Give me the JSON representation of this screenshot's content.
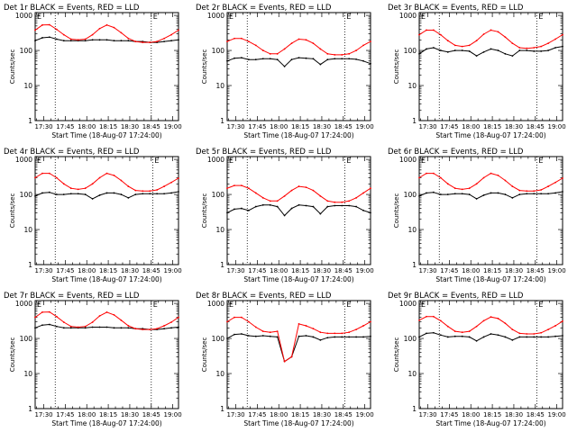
{
  "common": {
    "xlabel": "Start Time (18-Aug-07 17:24:00)",
    "ylabel": "Counts/sec",
    "y_ticks": [
      {
        "value": 1,
        "label": "1"
      },
      {
        "value": 10,
        "label": "10"
      },
      {
        "value": 100,
        "label": "100"
      },
      {
        "value": 1000,
        "label": "1000"
      }
    ],
    "x_ticks": [
      "17:30",
      "17:45",
      "18:00",
      "18:15",
      "18:30",
      "18:45",
      "19:00"
    ],
    "marker_text": "E",
    "colors": {
      "events": "#000000",
      "lld": "#ff0000",
      "axis": "#000000"
    }
  },
  "chart_data": [
    {
      "type": "line",
      "title": "Det 1r BLACK = Events, RED = LLD",
      "xlabel": "Start Time (18-Aug-07 17:24:00)",
      "ylabel": "Counts/sec",
      "y_scale": "log",
      "ylim": [
        1,
        1200
      ],
      "xlim": [
        "17:24",
        "19:04"
      ],
      "vlines": [
        "17:38",
        "18:45"
      ],
      "x": [
        "17:24",
        "17:29",
        "17:34",
        "17:39",
        "17:44",
        "17:49",
        "17:54",
        "17:59",
        "18:04",
        "18:09",
        "18:14",
        "18:19",
        "18:24",
        "18:29",
        "18:34",
        "18:39",
        "18:44",
        "18:49",
        "18:54",
        "18:59",
        "19:04"
      ],
      "series": [
        {
          "key": "events",
          "values": [
            190,
            230,
            240,
            210,
            190,
            190,
            190,
            190,
            200,
            200,
            200,
            190,
            190,
            190,
            180,
            180,
            170,
            170,
            180,
            190,
            200
          ]
        },
        {
          "key": "lld",
          "values": [
            380,
            530,
            540,
            400,
            280,
            210,
            200,
            210,
            280,
            420,
            530,
            450,
            320,
            220,
            180,
            170,
            170,
            180,
            220,
            280,
            380
          ]
        }
      ]
    },
    {
      "type": "line",
      "title": "Det 2r BLACK = Events, RED = LLD",
      "xlabel": "Start Time (18-Aug-07 17:24:00)",
      "ylabel": "Counts/sec",
      "y_scale": "log",
      "ylim": [
        1,
        1200
      ],
      "xlim": [
        "17:24",
        "19:04"
      ],
      "vlines": [
        "17:38",
        "18:46"
      ],
      "x": [
        "17:24",
        "17:29",
        "17:34",
        "17:39",
        "17:44",
        "17:49",
        "17:54",
        "17:59",
        "18:04",
        "18:09",
        "18:14",
        "18:19",
        "18:24",
        "18:29",
        "18:34",
        "18:39",
        "18:44",
        "18:49",
        "18:54",
        "18:59",
        "19:04"
      ],
      "series": [
        {
          "key": "events",
          "values": [
            50,
            60,
            62,
            55,
            55,
            58,
            58,
            55,
            35,
            55,
            62,
            60,
            58,
            40,
            55,
            58,
            58,
            58,
            56,
            50,
            42
          ]
        },
        {
          "key": "lld",
          "values": [
            180,
            220,
            220,
            180,
            140,
            100,
            80,
            80,
            110,
            160,
            210,
            200,
            160,
            110,
            80,
            75,
            75,
            80,
            100,
            140,
            180
          ]
        }
      ]
    },
    {
      "type": "line",
      "title": "Det 3r BLACK = Events, RED = LLD",
      "xlabel": "Start Time (18-Aug-07 17:24:00)",
      "ylabel": "Counts/sec",
      "y_scale": "log",
      "ylim": [
        1,
        1200
      ],
      "xlim": [
        "17:24",
        "19:04"
      ],
      "vlines": [
        "17:38",
        "18:46"
      ],
      "x": [
        "17:24",
        "17:29",
        "17:34",
        "17:39",
        "17:44",
        "17:49",
        "17:54",
        "17:59",
        "18:04",
        "18:09",
        "18:14",
        "18:19",
        "18:24",
        "18:29",
        "18:34",
        "18:39",
        "18:44",
        "18:49",
        "18:54",
        "18:59",
        "19:04"
      ],
      "series": [
        {
          "key": "events",
          "values": [
            80,
            110,
            120,
            100,
            90,
            100,
            100,
            95,
            70,
            90,
            110,
            100,
            80,
            70,
            100,
            100,
            95,
            95,
            100,
            120,
            130
          ]
        },
        {
          "key": "lld",
          "values": [
            280,
            380,
            380,
            280,
            190,
            140,
            130,
            140,
            190,
            290,
            380,
            340,
            240,
            160,
            120,
            115,
            120,
            130,
            160,
            210,
            280
          ]
        }
      ]
    },
    {
      "type": "line",
      "title": "Det 4r BLACK = Events, RED = LLD",
      "xlabel": "Start Time (18-Aug-07 17:24:00)",
      "ylabel": "Counts/sec",
      "y_scale": "log",
      "ylim": [
        1,
        1200
      ],
      "xlim": [
        "17:24",
        "19:04"
      ],
      "vlines": [
        "17:38",
        "18:46"
      ],
      "x": [
        "17:24",
        "17:29",
        "17:34",
        "17:39",
        "17:44",
        "17:49",
        "17:54",
        "17:59",
        "18:04",
        "18:09",
        "18:14",
        "18:19",
        "18:24",
        "18:29",
        "18:34",
        "18:39",
        "18:44",
        "18:49",
        "18:54",
        "18:59",
        "19:04"
      ],
      "series": [
        {
          "key": "events",
          "values": [
            90,
            110,
            115,
            100,
            100,
            105,
            105,
            100,
            75,
            95,
            110,
            110,
            100,
            80,
            100,
            105,
            105,
            105,
            105,
            110,
            120
          ]
        },
        {
          "key": "lld",
          "values": [
            300,
            400,
            400,
            300,
            200,
            150,
            140,
            150,
            200,
            300,
            400,
            350,
            250,
            170,
            130,
            125,
            125,
            135,
            170,
            220,
            290
          ]
        }
      ]
    },
    {
      "type": "line",
      "title": "Det 5r BLACK = Events, RED = LLD",
      "xlabel": "Start Time (18-Aug-07 17:24:00)",
      "ylabel": "Counts/sec",
      "y_scale": "log",
      "ylim": [
        1,
        1200
      ],
      "xlim": [
        "17:24",
        "19:04"
      ],
      "vlines": [
        "17:38",
        "18:46"
      ],
      "x": [
        "17:24",
        "17:29",
        "17:34",
        "17:39",
        "17:44",
        "17:49",
        "17:54",
        "17:59",
        "18:04",
        "18:09",
        "18:14",
        "18:19",
        "18:24",
        "18:29",
        "18:34",
        "18:39",
        "18:44",
        "18:49",
        "18:54",
        "18:59",
        "19:04"
      ],
      "series": [
        {
          "key": "events",
          "values": [
            30,
            38,
            40,
            35,
            45,
            50,
            50,
            45,
            25,
            40,
            50,
            48,
            45,
            28,
            45,
            48,
            48,
            48,
            45,
            35,
            30
          ]
        },
        {
          "key": "lld",
          "values": [
            150,
            180,
            180,
            150,
            110,
            80,
            65,
            65,
            90,
            130,
            170,
            160,
            130,
            90,
            65,
            60,
            60,
            65,
            80,
            110,
            150
          ]
        }
      ]
    },
    {
      "type": "line",
      "title": "Det 6r BLACK = Events, RED = LLD",
      "xlabel": "Start Time (18-Aug-07 17:24:00)",
      "ylabel": "Counts/sec",
      "y_scale": "log",
      "ylim": [
        1,
        1200
      ],
      "xlim": [
        "17:24",
        "19:04"
      ],
      "vlines": [
        "17:38",
        "18:46"
      ],
      "x": [
        "17:24",
        "17:29",
        "17:34",
        "17:39",
        "17:44",
        "17:49",
        "17:54",
        "17:59",
        "18:04",
        "18:09",
        "18:14",
        "18:19",
        "18:24",
        "18:29",
        "18:34",
        "18:39",
        "18:44",
        "18:49",
        "18:54",
        "18:59",
        "19:04"
      ],
      "series": [
        {
          "key": "events",
          "values": [
            90,
            110,
            115,
            100,
            100,
            105,
            105,
            100,
            75,
            95,
            110,
            110,
            100,
            80,
            100,
            105,
            105,
            105,
            105,
            110,
            120
          ]
        },
        {
          "key": "lld",
          "values": [
            300,
            400,
            400,
            300,
            200,
            150,
            140,
            150,
            200,
            300,
            400,
            350,
            250,
            170,
            130,
            125,
            125,
            135,
            170,
            220,
            290
          ]
        }
      ]
    },
    {
      "type": "line",
      "title": "Det 7r BLACK = Events, RED = LLD",
      "xlabel": "Start Time (18-Aug-07 17:24:00)",
      "ylabel": "Counts/sec",
      "y_scale": "log",
      "ylim": [
        1,
        1200
      ],
      "xlim": [
        "17:24",
        "19:04"
      ],
      "vlines": [
        "17:38",
        "18:45"
      ],
      "x": [
        "17:24",
        "17:29",
        "17:34",
        "17:39",
        "17:44",
        "17:49",
        "17:54",
        "17:59",
        "18:04",
        "18:09",
        "18:14",
        "18:19",
        "18:24",
        "18:29",
        "18:34",
        "18:39",
        "18:44",
        "18:49",
        "18:54",
        "18:59",
        "19:04"
      ],
      "series": [
        {
          "key": "events",
          "values": [
            200,
            240,
            250,
            220,
            200,
            200,
            200,
            200,
            210,
            210,
            210,
            200,
            200,
            200,
            190,
            190,
            180,
            180,
            190,
            200,
            210
          ]
        },
        {
          "key": "lld",
          "values": [
            400,
            560,
            570,
            420,
            290,
            220,
            210,
            220,
            290,
            440,
            560,
            470,
            330,
            230,
            190,
            180,
            180,
            190,
            230,
            290,
            400
          ]
        }
      ]
    },
    {
      "type": "line",
      "title": "Det 8r BLACK = Events, RED = LLD",
      "xlabel": "Start Time (18-Aug-07 17:24:00)",
      "ylabel": "Counts/sec",
      "y_scale": "log",
      "ylim": [
        1,
        1200
      ],
      "xlim": [
        "17:24",
        "19:04"
      ],
      "vlines": [
        "17:38",
        "18:46"
      ],
      "x": [
        "17:24",
        "17:29",
        "17:34",
        "17:39",
        "17:44",
        "17:49",
        "17:54",
        "17:59",
        "18:04",
        "18:09",
        "18:14",
        "18:19",
        "18:24",
        "18:29",
        "18:34",
        "18:39",
        "18:44",
        "18:49",
        "18:54",
        "18:59",
        "19:04"
      ],
      "series": [
        {
          "key": "events",
          "values": [
            100,
            130,
            135,
            120,
            115,
            120,
            115,
            110,
            22,
            30,
            115,
            120,
            110,
            90,
            105,
            110,
            110,
            110,
            110,
            110,
            115
          ]
        },
        {
          "key": "lld",
          "values": [
            300,
            400,
            400,
            300,
            210,
            160,
            150,
            160,
            22,
            30,
            260,
            230,
            190,
            150,
            140,
            140,
            140,
            150,
            180,
            230,
            300
          ]
        }
      ]
    },
    {
      "type": "line",
      "title": "Det 9r BLACK = Events, RED = LLD",
      "xlabel": "Start Time (18-Aug-07 17:24:00)",
      "ylabel": "Counts/sec",
      "y_scale": "log",
      "ylim": [
        1,
        1200
      ],
      "xlim": [
        "17:24",
        "19:04"
      ],
      "vlines": [
        "17:38",
        "18:46"
      ],
      "x": [
        "17:24",
        "17:29",
        "17:34",
        "17:39",
        "17:44",
        "17:49",
        "17:54",
        "17:59",
        "18:04",
        "18:09",
        "18:14",
        "18:19",
        "18:24",
        "18:29",
        "18:34",
        "18:39",
        "18:44",
        "18:49",
        "18:54",
        "18:59",
        "19:04"
      ],
      "series": [
        {
          "key": "events",
          "values": [
            110,
            140,
            145,
            125,
            110,
            115,
            115,
            110,
            85,
            110,
            135,
            125,
            110,
            90,
            110,
            110,
            110,
            110,
            110,
            115,
            120
          ]
        },
        {
          "key": "lld",
          "values": [
            330,
            420,
            420,
            320,
            220,
            160,
            150,
            160,
            220,
            320,
            410,
            370,
            270,
            180,
            140,
            135,
            135,
            145,
            180,
            230,
            310
          ]
        }
      ]
    }
  ]
}
